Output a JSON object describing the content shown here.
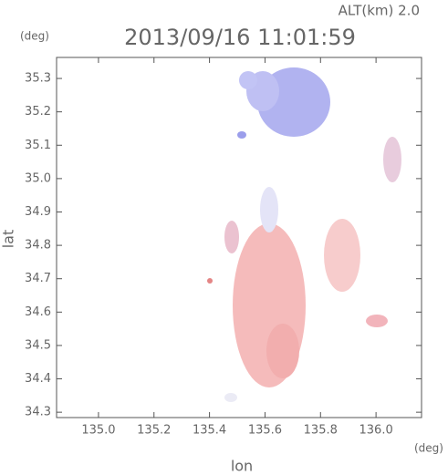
{
  "altitude_label": "ALT(km) 2.0",
  "chart_data": {
    "type": "radar-map",
    "title": "2013/09/16 11:01:59",
    "x_label": "lon",
    "y_label": "lat",
    "x_unit": "(deg)",
    "y_unit": "(deg)",
    "xlim": [
      134.849,
      136.164
    ],
    "ylim": [
      34.284,
      35.363
    ],
    "xticks": [
      {
        "value": 135.0,
        "label": "135.0"
      },
      135.2,
      135.4,
      135.6,
      135.8,
      {
        "value": 136.0,
        "label": "136.0"
      }
    ],
    "yticks": [
      34.3,
      34.4,
      34.5,
      34.6,
      34.7,
      34.8,
      34.9,
      {
        "value": 35.0,
        "label": "35.0"
      },
      35.1,
      35.2,
      35.3
    ]
  }
}
